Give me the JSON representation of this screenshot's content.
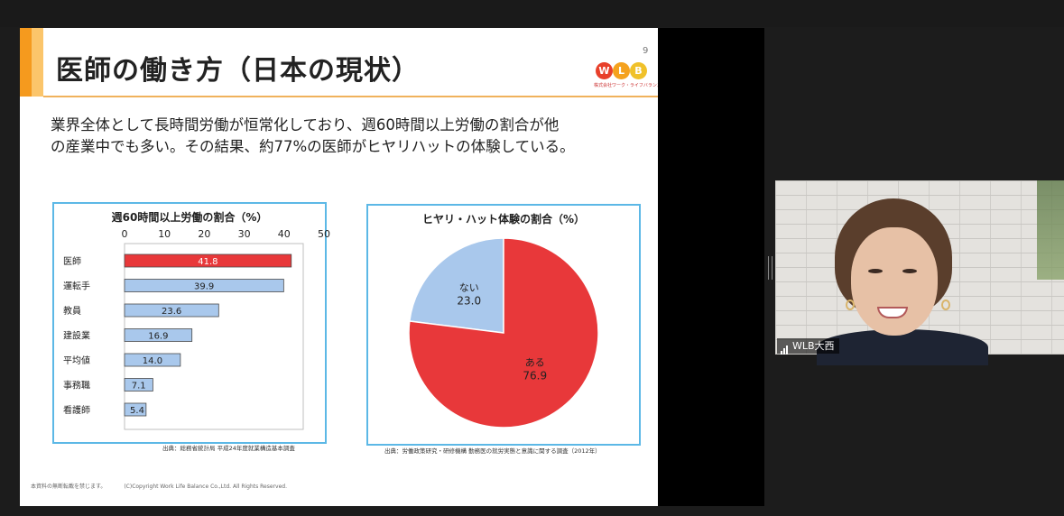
{
  "slide": {
    "page_number": "9",
    "title": "医師の働き方（日本の現状）",
    "logo_letters": [
      "W",
      "L",
      "B"
    ],
    "logo_subtitle": "株式会社ワーク・ライフバランス",
    "intro_line1": "業界全体として長時間労働が恒常化しており、週60時間以上労働の割合が他",
    "intro_line2": "の産業中でも多い。その結果、約77%の医師がヒヤリハットの体験している。",
    "footer_note": "本資料の無断転載を禁じます。",
    "footer_copyright": "(C)Copyright  Work Life Balance Co.,Ltd. All Rights Reserved."
  },
  "bar_panel": {
    "title": "週60時間以上労働の割合（%）",
    "source": "出典：総務省統計局 平成24年度就業構造基本調査"
  },
  "pie_panel": {
    "title": "ヒヤリ・ハット体験の割合（%）",
    "source": "出典：労働政策研究・研修機構 勤務医の就労実態と意識に関する調査（2012年）"
  },
  "chart_data": [
    {
      "type": "bar",
      "orientation": "horizontal",
      "title": "週60時間以上労働の割合（%）",
      "categories": [
        "医師",
        "運転手",
        "教員",
        "建設業",
        "平均値",
        "事務職",
        "看護師"
      ],
      "values": [
        41.8,
        39.9,
        23.6,
        16.9,
        14.0,
        7.1,
        5.4
      ],
      "value_labels": [
        "41.8",
        "39.9",
        "23.6",
        "16.9",
        "14.0",
        "7.1",
        "5.4"
      ],
      "ticks": [
        "0",
        "10",
        "20",
        "30",
        "40",
        "50"
      ],
      "xlim": [
        0,
        50
      ],
      "axis_position": "top",
      "colors": {
        "highlight": "#e8383a",
        "default": "#a9c8ec",
        "bar_edge": "#4a4a4a"
      },
      "highlight_index": 0
    },
    {
      "type": "pie",
      "title": "ヒヤリ・ハット体験の割合（%）",
      "labels": [
        "ない",
        "ある"
      ],
      "values": [
        23.0,
        76.9
      ],
      "value_labels": [
        "23.0",
        "76.9"
      ],
      "colors": [
        "#a9c8ec",
        "#e8383a"
      ]
    }
  ],
  "video": {
    "participant_name": "WLB大西",
    "signal_icon": "signal-bars-icon"
  }
}
